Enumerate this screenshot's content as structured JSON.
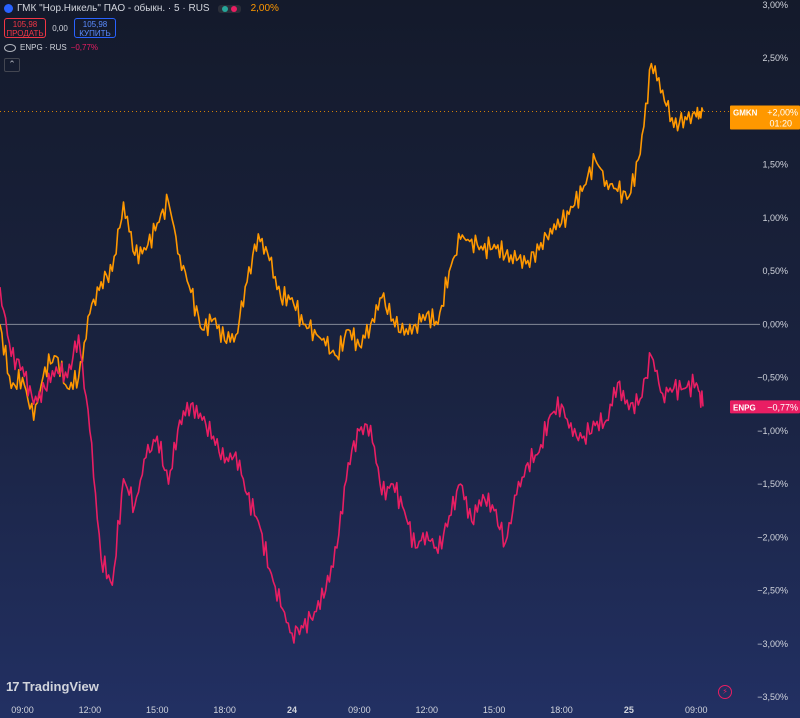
{
  "header": {
    "symbol_title": "ГМК \"Нор.Никель\" ПАО - обыкн. · 5 · RUS",
    "change_pct": "2,00%",
    "sell_price": "105,98",
    "sell_label": "ПРОДАТЬ",
    "spread": "0,00",
    "buy_price": "105,98",
    "buy_label": "КУПИТЬ",
    "compare_symbol": "ENPG · RUS",
    "compare_change": "−0,77%",
    "collapse_glyph": "⌃"
  },
  "branding": {
    "logo_text": "TradingView",
    "logo_mark": "𝟭𝟳"
  },
  "colors": {
    "gmkn": "#ff9800",
    "enpg": "#e91e63",
    "zero_line": "#b2b5be",
    "axis_text": "#d1d4dc"
  },
  "chart_data": {
    "type": "line",
    "y_axis_ticks": [
      "3,00%",
      "2,50%",
      "2,00%",
      "1,50%",
      "1,00%",
      "0,50%",
      "0,00%",
      "−0,50%",
      "−1,00%",
      "−1,50%",
      "−2,00%",
      "−2,50%",
      "−3,00%",
      "−3,50%"
    ],
    "ylim": [
      -3.5,
      3.0
    ],
    "x_axis_ticks": [
      "09:00",
      "12:00",
      "15:00",
      "18:00",
      "24",
      "09:00",
      "12:00",
      "15:00",
      "18:00",
      "25",
      "09:00"
    ],
    "x_positions_note_hours": [
      0,
      3,
      6,
      9,
      12,
      15,
      18,
      21,
      24,
      27,
      30
    ],
    "xlim": [
      -1.0,
      31.5
    ],
    "series": [
      {
        "name": "GMKN",
        "last_label": "+2,00%",
        "countdown": "01:20",
        "x": [
          -1.0,
          -0.5,
          0,
          0.5,
          1,
          1.5,
          2,
          2.5,
          3,
          3.5,
          4,
          4.5,
          5,
          5.5,
          6,
          6.5,
          7,
          7.5,
          8,
          8.5,
          9,
          9.5,
          10,
          10.5,
          11,
          11.5,
          12,
          12.5,
          13,
          13.5,
          14,
          14.5,
          15,
          15.5,
          16,
          16.5,
          17,
          17.5,
          18,
          18.5,
          19,
          19.5,
          20,
          20.5,
          21,
          21.5,
          22,
          22.5,
          23,
          23.5,
          24,
          24.5,
          25,
          25.5,
          26,
          26.5,
          27,
          27.5,
          28,
          28.5,
          29,
          29.5,
          30,
          30.3
        ],
        "values": [
          0.0,
          -0.6,
          -0.5,
          -0.9,
          -0.4,
          -0.3,
          -0.6,
          -0.5,
          0.1,
          0.4,
          0.5,
          1.15,
          0.65,
          0.7,
          0.95,
          1.15,
          0.65,
          0.3,
          -0.05,
          0.05,
          -0.15,
          -0.1,
          0.4,
          0.85,
          0.6,
          0.25,
          0.25,
          0.0,
          -0.05,
          -0.2,
          -0.3,
          -0.05,
          -0.2,
          0.0,
          0.25,
          0.05,
          -0.1,
          0.0,
          0.1,
          0.0,
          0.5,
          0.8,
          0.8,
          0.7,
          0.75,
          0.65,
          0.6,
          0.6,
          0.7,
          0.9,
          0.95,
          1.1,
          1.3,
          1.55,
          1.35,
          1.25,
          1.2,
          1.6,
          2.45,
          2.2,
          1.85,
          1.95,
          1.95,
          2.0
        ]
      },
      {
        "name": "ENPG",
        "last_label": "−0,77%",
        "x": [
          -1.0,
          -0.5,
          0,
          0.5,
          1,
          1.5,
          2,
          2.5,
          3,
          3.5,
          4,
          4.5,
          5,
          5.5,
          6,
          6.5,
          7,
          7.5,
          8,
          8.5,
          9,
          9.5,
          10,
          10.5,
          11,
          11.5,
          12,
          12.5,
          13,
          13.5,
          14,
          14.5,
          15,
          15.5,
          16,
          16.5,
          17,
          17.5,
          18,
          18.5,
          19,
          19.5,
          20,
          20.5,
          21,
          21.5,
          22,
          22.5,
          23,
          23.5,
          24,
          24.5,
          25,
          25.5,
          26,
          26.5,
          27,
          27.5,
          28,
          28.5,
          29,
          29.5,
          30,
          30.3
        ],
        "values": [
          0.35,
          -0.3,
          -0.4,
          -0.75,
          -0.6,
          -0.4,
          -0.5,
          -0.1,
          -1.0,
          -2.2,
          -2.45,
          -1.45,
          -1.7,
          -1.25,
          -1.05,
          -1.5,
          -0.9,
          -0.75,
          -0.9,
          -1.05,
          -1.3,
          -1.2,
          -1.6,
          -1.85,
          -2.3,
          -2.65,
          -2.9,
          -2.85,
          -2.7,
          -2.5,
          -2.1,
          -1.3,
          -1.0,
          -0.95,
          -1.6,
          -1.5,
          -1.75,
          -2.1,
          -1.95,
          -2.15,
          -1.8,
          -1.5,
          -1.85,
          -1.6,
          -1.75,
          -2.05,
          -1.6,
          -1.3,
          -1.2,
          -0.85,
          -0.75,
          -1.05,
          -1.05,
          -0.95,
          -0.9,
          -0.55,
          -0.8,
          -0.7,
          -0.3,
          -0.65,
          -0.6,
          -0.6,
          -0.55,
          -0.77
        ]
      }
    ],
    "zero_line": 0.0,
    "legend": "top-left"
  }
}
